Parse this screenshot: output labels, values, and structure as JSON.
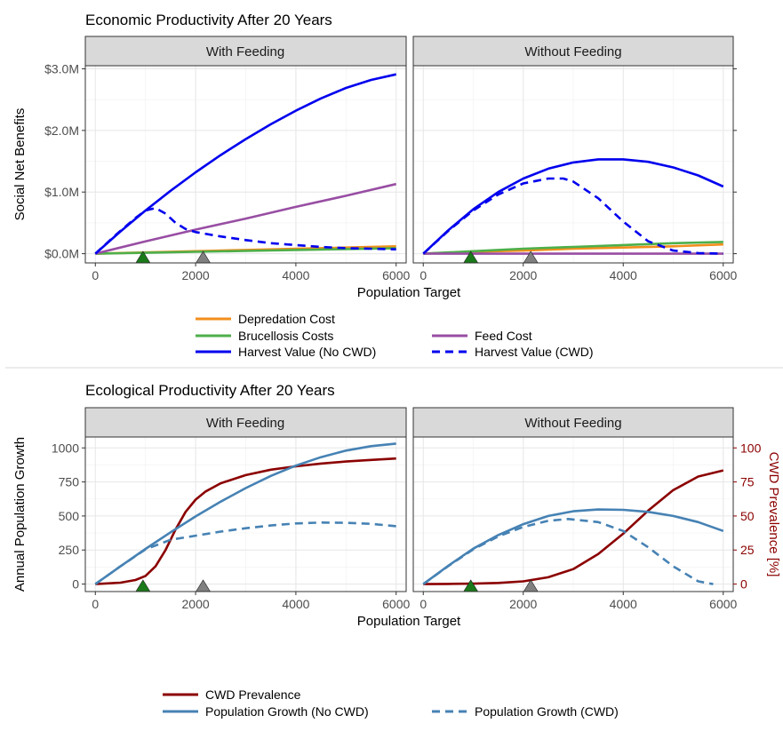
{
  "chart_data": [
    {
      "type": "line",
      "title": "Economic Productivity After 20 Years",
      "xlabel": "Population Target",
      "ylabel": "Social Net Benefits",
      "x_ticks": [
        0,
        2000,
        4000,
        6000
      ],
      "x_tick_labels": [
        "0",
        "2000",
        "4000",
        "6000"
      ],
      "y_ticks": [
        0,
        1,
        2,
        3
      ],
      "y_tick_labels": [
        "$0.0M",
        "$1.0M",
        "$2.0M",
        "$3.0M"
      ],
      "xlim": [
        -200,
        6200
      ],
      "ylim": [
        -0.15,
        3.05
      ],
      "markers": [
        {
          "x": 950,
          "color": "#1a7a1a"
        },
        {
          "x": 2150,
          "color": "#808080"
        }
      ],
      "legend": [
        {
          "name": "Depredation Cost",
          "color": "#f28e1c",
          "dash": false
        },
        {
          "name": "Brucellosis Costs",
          "color": "#4daf4a",
          "dash": false
        },
        {
          "name": "Feed Cost",
          "color": "#984ea3",
          "dash": false
        },
        {
          "name": "Harvest Value (No CWD)",
          "color": "#0000ee",
          "dash": false
        },
        {
          "name": "Harvest Value (CWD)",
          "color": "#0000ee",
          "dash": true
        }
      ],
      "panels": [
        {
          "label": "With Feeding",
          "series": [
            {
              "name": "Depredation Cost",
              "x": [
                0,
                1000,
                2000,
                3000,
                4000,
                5000,
                6000
              ],
              "values": [
                0,
                0.02,
                0.04,
                0.06,
                0.08,
                0.1,
                0.12
              ]
            },
            {
              "name": "Brucellosis Costs",
              "x": [
                0,
                1000,
                2000,
                3000,
                4000,
                5000,
                6000
              ],
              "values": [
                0,
                0.015,
                0.03,
                0.045,
                0.06,
                0.075,
                0.09
              ]
            },
            {
              "name": "Feed Cost",
              "x": [
                0,
                1000,
                2000,
                3000,
                4000,
                5000,
                6000
              ],
              "values": [
                0,
                0.2,
                0.39,
                0.57,
                0.76,
                0.94,
                1.13
              ]
            },
            {
              "name": "Harvest Value (No CWD)",
              "x": [
                0,
                500,
                1000,
                1500,
                2000,
                2500,
                3000,
                3500,
                4000,
                4500,
                5000,
                5500,
                6000
              ],
              "values": [
                0,
                0.36,
                0.7,
                1.02,
                1.32,
                1.6,
                1.86,
                2.1,
                2.32,
                2.52,
                2.69,
                2.82,
                2.91
              ]
            },
            {
              "name": "Harvest Value (CWD)",
              "x": [
                0,
                400,
                800,
                1000,
                1200,
                1400,
                1600,
                1800,
                2000,
                2500,
                3000,
                3500,
                4000,
                4500,
                5000,
                5500,
                6000
              ],
              "values": [
                0,
                0.3,
                0.58,
                0.7,
                0.74,
                0.65,
                0.5,
                0.4,
                0.35,
                0.28,
                0.22,
                0.17,
                0.14,
                0.11,
                0.09,
                0.08,
                0.07
              ]
            }
          ]
        },
        {
          "label": "Without Feeding",
          "series": [
            {
              "name": "Depredation Cost",
              "x": [
                0,
                1000,
                2000,
                3000,
                4000,
                5000,
                6000
              ],
              "values": [
                0,
                0.03,
                0.05,
                0.08,
                0.1,
                0.12,
                0.15
              ]
            },
            {
              "name": "Brucellosis Costs",
              "x": [
                0,
                1000,
                2000,
                3000,
                4000,
                5000,
                6000
              ],
              "values": [
                0,
                0.04,
                0.08,
                0.11,
                0.14,
                0.17,
                0.19
              ]
            },
            {
              "name": "Feed Cost",
              "x": [
                0,
                6000
              ],
              "values": [
                0,
                0
              ]
            },
            {
              "name": "Harvest Value (No CWD)",
              "x": [
                0,
                500,
                1000,
                1500,
                2000,
                2500,
                3000,
                3500,
                4000,
                4500,
                5000,
                5500,
                6000
              ],
              "values": [
                0,
                0.38,
                0.72,
                1.0,
                1.22,
                1.38,
                1.48,
                1.53,
                1.53,
                1.49,
                1.4,
                1.27,
                1.09
              ]
            },
            {
              "name": "Harvest Value (CWD)",
              "x": [
                0,
                500,
                1000,
                1500,
                2000,
                2500,
                2800,
                3000,
                3500,
                4000,
                4500,
                5000,
                5500,
                6000
              ],
              "values": [
                0,
                0.37,
                0.7,
                0.96,
                1.14,
                1.22,
                1.22,
                1.17,
                0.9,
                0.52,
                0.2,
                0.05,
                0.01,
                0.0
              ]
            }
          ]
        }
      ]
    },
    {
      "type": "line",
      "title": "Ecological Productivity After 20 Years",
      "xlabel": "Population Target",
      "ylabel": "Annual Population Growth",
      "y2label": "CWD Prevalence [%]",
      "x_ticks": [
        0,
        2000,
        4000,
        6000
      ],
      "x_tick_labels": [
        "0",
        "2000",
        "4000",
        "6000"
      ],
      "y_ticks": [
        0,
        250,
        500,
        750,
        1000
      ],
      "y_tick_labels": [
        "0",
        "250",
        "500",
        "750",
        "1000"
      ],
      "y2_ticks": [
        0,
        25,
        50,
        75,
        100
      ],
      "y2_tick_labels": [
        "0",
        "25",
        "50",
        "75",
        "100"
      ],
      "xlim": [
        -200,
        6200
      ],
      "ylim": [
        -55,
        1080
      ],
      "y2_scale": 10,
      "markers": [
        {
          "x": 950,
          "color": "#1a7a1a"
        },
        {
          "x": 2150,
          "color": "#808080"
        }
      ],
      "legend": [
        {
          "name": "CWD Prevalence",
          "color": "#8b0000",
          "dash": false
        },
        {
          "name": "Population Growth (No CWD)",
          "color": "#4682b4",
          "dash": false
        },
        {
          "name": "Population Growth (CWD)",
          "color": "#4682b4",
          "dash": true
        }
      ],
      "panels": [
        {
          "label": "With Feeding",
          "series": [
            {
              "name": "CWD Prevalence",
              "axis": "right",
              "x": [
                0,
                500,
                800,
                1000,
                1200,
                1400,
                1600,
                1800,
                2000,
                2200,
                2500,
                3000,
                3500,
                4000,
                4500,
                5000,
                5500,
                6000
              ],
              "values": [
                0,
                1,
                3,
                6,
                13,
                25,
                40,
                53,
                62,
                68,
                74,
                80,
                84,
                86.5,
                88.5,
                90,
                91.2,
                92.2
              ]
            },
            {
              "name": "Population Growth (No CWD)",
              "x": [
                0,
                500,
                1000,
                1500,
                2000,
                2500,
                3000,
                3500,
                4000,
                4500,
                5000,
                5500,
                6000
              ],
              "values": [
                0,
                130,
                258,
                380,
                497,
                605,
                705,
                794,
                870,
                932,
                980,
                1013,
                1032
              ]
            },
            {
              "name": "Population Growth (CWD)",
              "x": [
                0,
                500,
                1000,
                1500,
                2000,
                2500,
                3000,
                3500,
                4000,
                4500,
                5000,
                5500,
                6000
              ],
              "values": [
                0,
                130,
                255,
                325,
                355,
                385,
                410,
                430,
                445,
                452,
                450,
                442,
                425
              ]
            }
          ]
        },
        {
          "label": "Without Feeding",
          "series": [
            {
              "name": "CWD Prevalence",
              "axis": "right",
              "x": [
                0,
                500,
                1000,
                1500,
                2000,
                2500,
                3000,
                3500,
                4000,
                4500,
                5000,
                5500,
                6000
              ],
              "values": [
                0,
                0.1,
                0.3,
                0.8,
                2,
                5,
                11,
                22,
                37,
                54,
                69,
                79,
                83.5
              ]
            },
            {
              "name": "Population Growth (No CWD)",
              "x": [
                0,
                500,
                1000,
                1500,
                2000,
                2500,
                3000,
                3500,
                4000,
                4500,
                5000,
                5500,
                6000
              ],
              "values": [
                0,
                135,
                260,
                360,
                440,
                500,
                535,
                548,
                545,
                530,
                500,
                455,
                390
              ]
            },
            {
              "name": "Population Growth (CWD)",
              "x": [
                0,
                500,
                1000,
                1500,
                2000,
                2500,
                2900,
                3500,
                4000,
                4500,
                5000,
                5500,
                5800
              ],
              "values": [
                0,
                132,
                255,
                350,
                420,
                465,
                478,
                455,
                390,
                270,
                130,
                20,
                0
              ]
            }
          ]
        }
      ]
    }
  ]
}
